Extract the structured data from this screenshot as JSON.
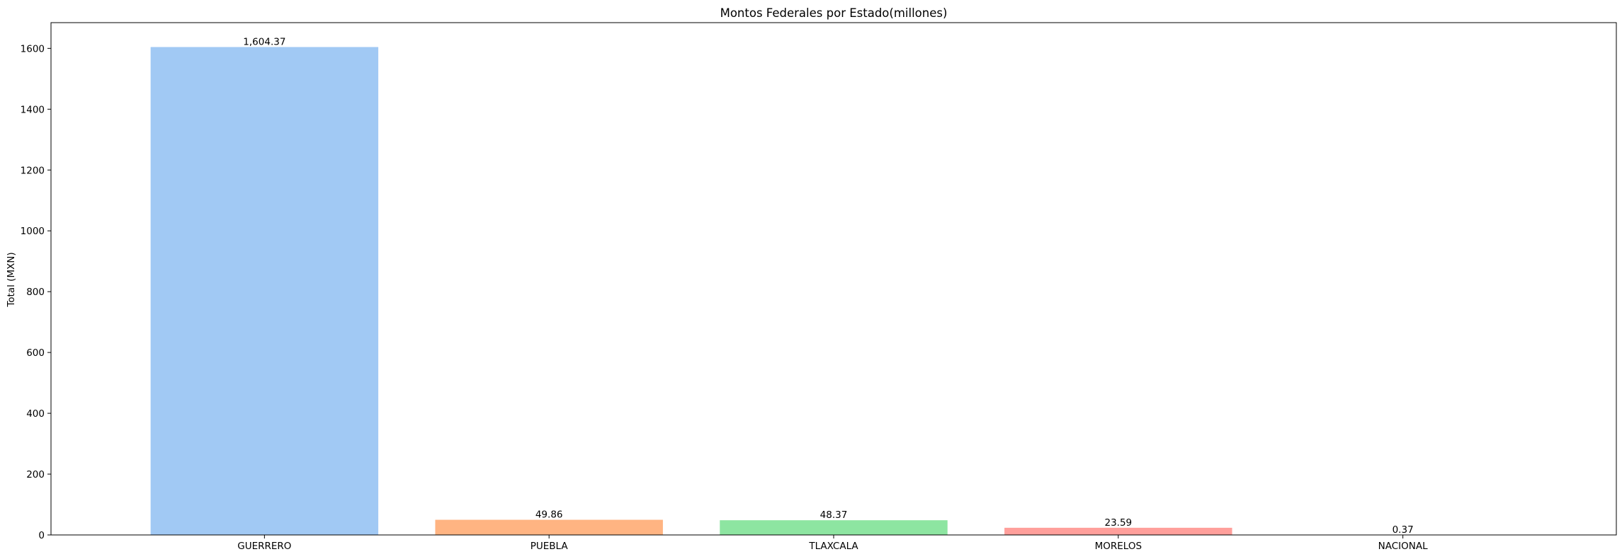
{
  "chart_data": {
    "type": "bar",
    "title": "Montos Federales por Estado(millones)",
    "xlabel": "",
    "ylabel": "Total (MXN)",
    "categories": [
      "GUERRERO",
      "PUEBLA",
      "TLAXCALA",
      "MORELOS",
      "NACIONAL"
    ],
    "values": [
      1604.37,
      49.86,
      48.37,
      23.59,
      0.37
    ],
    "value_labels": [
      "1,604.37",
      "49.86",
      "48.37",
      "23.59",
      "0.37"
    ],
    "colors": [
      "#a1c9f4",
      "#ffb482",
      "#8de5a1",
      "#ff9f9b",
      "#d0bbff"
    ],
    "ylim": [
      0,
      1684.6
    ],
    "yticks": [
      0,
      200,
      400,
      600,
      800,
      1000,
      1200,
      1400,
      1600
    ],
    "ytick_labels": [
      "0",
      "200",
      "400",
      "600",
      "800",
      "1000",
      "1200",
      "1400",
      "1600"
    ],
    "grid": false,
    "legend": "none"
  }
}
